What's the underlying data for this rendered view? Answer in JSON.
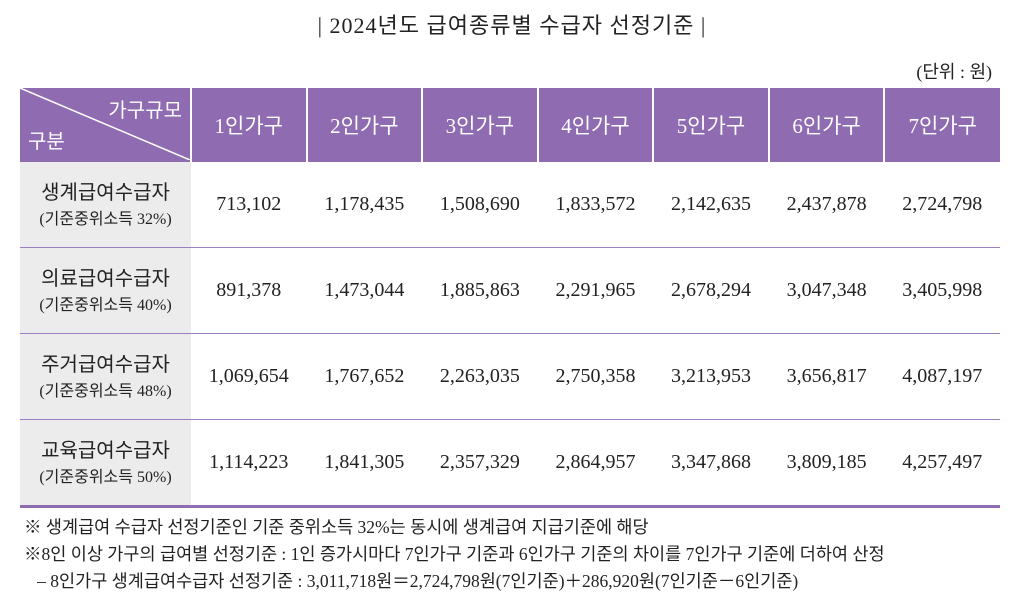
{
  "header": {
    "title": "|  2024년도 급여종류별 수급자 선정기준  |",
    "unit": "(단위 : 원)"
  },
  "table": {
    "corner": {
      "column_label": "가구규모",
      "row_label": "구분"
    },
    "columns": [
      "1인가구",
      "2인가구",
      "3인가구",
      "4인가구",
      "5인가구",
      "6인가구",
      "7인가구"
    ],
    "rows": [
      {
        "name": "생계급여수급자",
        "sub": "(기준중위소득 32%)",
        "values": [
          "713,102",
          "1,178,435",
          "1,508,690",
          "1,833,572",
          "2,142,635",
          "2,437,878",
          "2,724,798"
        ]
      },
      {
        "name": "의료급여수급자",
        "sub": "(기준중위소득 40%)",
        "values": [
          "891,378",
          "1,473,044",
          "1,885,863",
          "2,291,965",
          "2,678,294",
          "3,047,348",
          "3,405,998"
        ]
      },
      {
        "name": "주거급여수급자",
        "sub": "(기준중위소득 48%)",
        "values": [
          "1,069,654",
          "1,767,652",
          "2,263,035",
          "2,750,358",
          "3,213,953",
          "3,656,817",
          "4,087,197"
        ]
      },
      {
        "name": "교육급여수급자",
        "sub": "(기준중위소득 50%)",
        "values": [
          "1,114,223",
          "1,841,305",
          "2,357,329",
          "2,864,957",
          "3,347,868",
          "3,809,185",
          "4,257,497"
        ]
      }
    ]
  },
  "notes": [
    "※ 생계급여 수급자 선정기준인 기준 중위소득 32%는 동시에 생계급여 지급기준에 해당",
    "※8인 이상 가구의 급여별 선정기준 : 1인 증가시마다 7인가구 기준과 6인가구 기준의 차이를 7인가구 기준에 더하여 산정",
    "   – 8인가구 생계급여수급자 선정기준 : 3,011,718원＝2,724,798원(7인기준)＋286,920원(7인기준－6인기준)"
  ]
}
